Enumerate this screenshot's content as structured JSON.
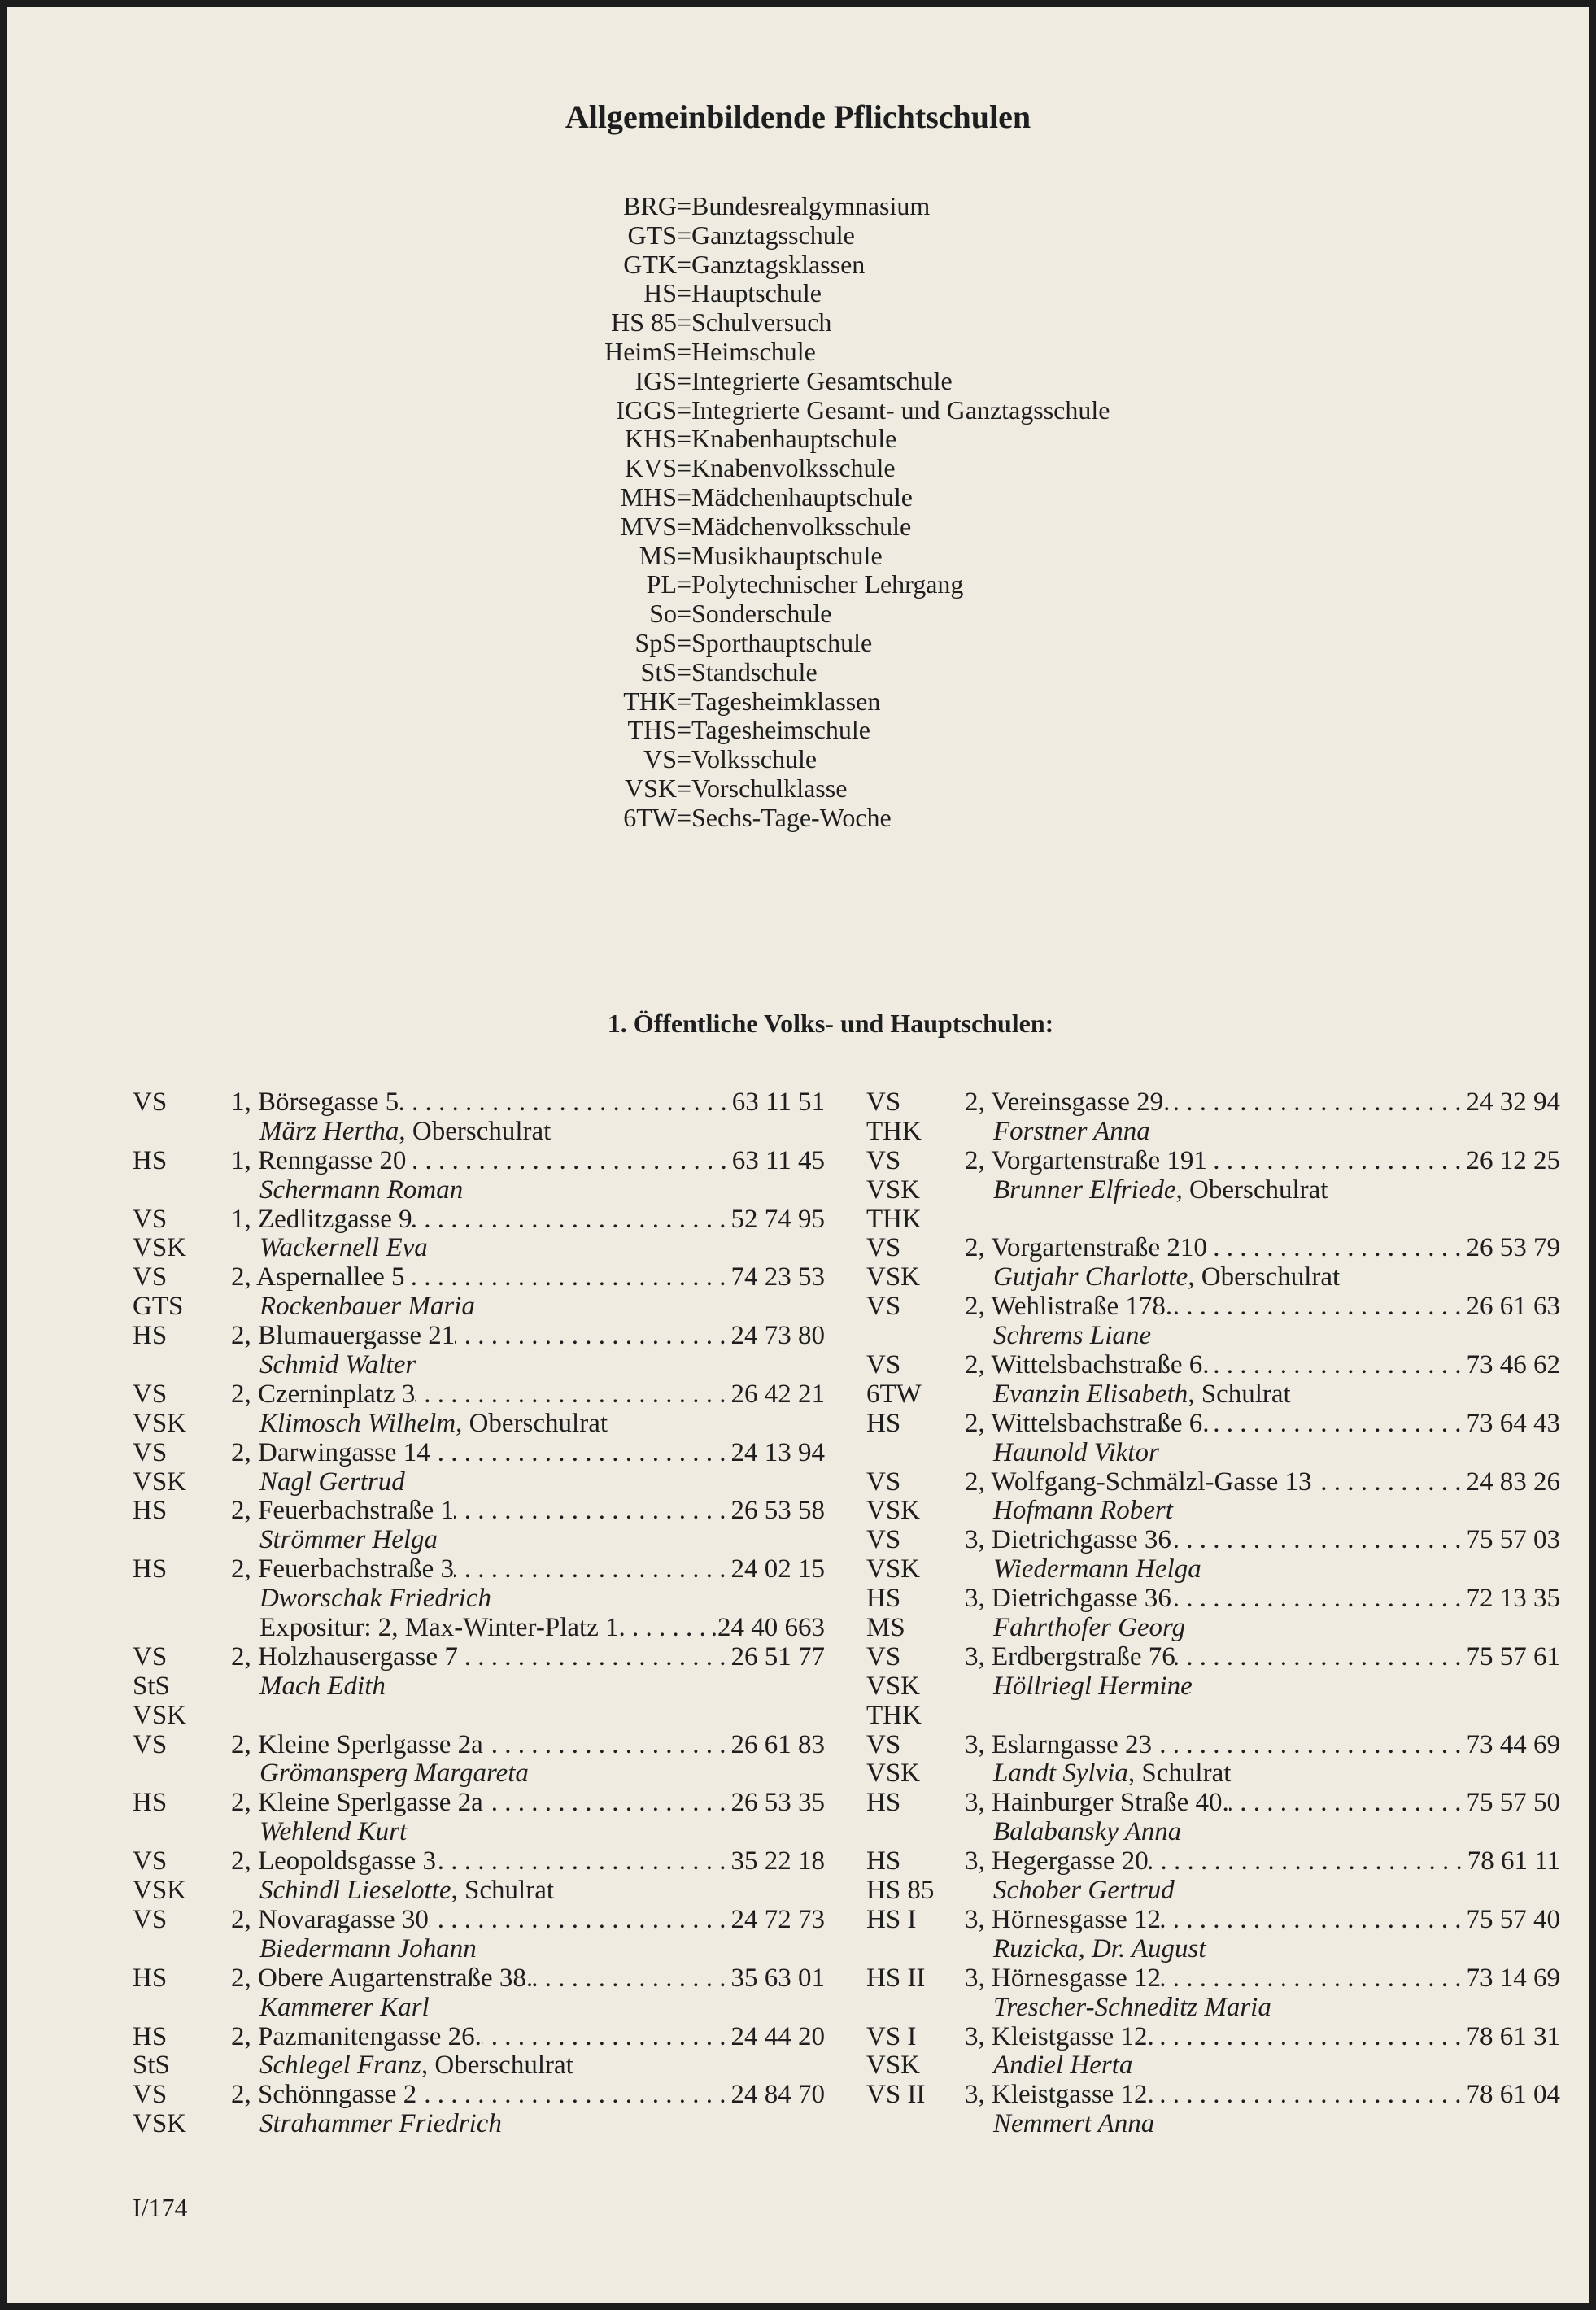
{
  "title": "Allgemeinbildende Pflichtschulen",
  "abbreviations": [
    {
      "code": "BRG",
      "text": "Bundesrealgymnasium"
    },
    {
      "code": "GTS",
      "text": "Ganztagsschule"
    },
    {
      "code": "GTK",
      "text": "Ganztagsklassen"
    },
    {
      "code": "HS",
      "text": "Hauptschule"
    },
    {
      "code": "HS 85",
      "text": "Schulversuch"
    },
    {
      "code": "HeimS",
      "text": "Heimschule"
    },
    {
      "code": "IGS",
      "text": "Integrierte Gesamtschule"
    },
    {
      "code": "IGGS",
      "text": "Integrierte Gesamt- und Ganztagsschule"
    },
    {
      "code": "KHS",
      "text": "Knabenhauptschule"
    },
    {
      "code": "KVS",
      "text": "Knabenvolksschule"
    },
    {
      "code": "MHS",
      "text": "Mädchenhauptschule"
    },
    {
      "code": "MVS",
      "text": "Mädchenvolksschule"
    },
    {
      "code": "MS",
      "text": "Musikhauptschule"
    },
    {
      "code": "PL",
      "text": "Polytechnischer Lehrgang"
    },
    {
      "code": "So",
      "text": "Sonderschule"
    },
    {
      "code": "SpS",
      "text": "Sporthauptschule"
    },
    {
      "code": "StS",
      "text": "Standschule"
    },
    {
      "code": "THK",
      "text": "Tagesheimklassen"
    },
    {
      "code": "THS",
      "text": "Tagesheimschule"
    },
    {
      "code": "VS",
      "text": "Volksschule"
    },
    {
      "code": "VSK",
      "text": "Vorschulklasse"
    },
    {
      "code": "6TW",
      "text": "Sechs-Tage-Woche"
    }
  ],
  "abbr_separator": "=",
  "section_heading": "1. Öffentliche Volks- und Hauptschulen:",
  "columns": {
    "left": [
      {
        "code": "VS",
        "addr": "1, Börsegasse 5",
        "phone": "63 11 51"
      },
      {
        "code": "",
        "name": "März Hertha",
        "title": ", Oberschulrat"
      },
      {
        "code": "HS",
        "addr": "1, Renngasse 20",
        "phone": "63 11 45"
      },
      {
        "code": "",
        "name": "Schermann Roman"
      },
      {
        "code": "VS",
        "addr": "1, Zedlitzgasse 9",
        "phone": "52 74 95"
      },
      {
        "code": "VSK",
        "name": "Wackernell Eva"
      },
      {
        "code": "VS",
        "addr": "2, Aspernallee 5",
        "phone": "74 23 53"
      },
      {
        "code": "GTS",
        "name": "Rockenbauer Maria"
      },
      {
        "code": "HS",
        "addr": "2, Blumauergasse 21",
        "phone": "24 73 80"
      },
      {
        "code": "",
        "name": "Schmid Walter"
      },
      {
        "code": "VS",
        "addr": "2, Czerninplatz 3",
        "phone": "26 42 21"
      },
      {
        "code": "VSK",
        "name": "Klimosch Wilhelm",
        "title": ", Oberschulrat"
      },
      {
        "code": "VS",
        "addr": "2, Darwingasse 14",
        "phone": "24 13 94"
      },
      {
        "code": "VSK",
        "name": "Nagl Gertrud"
      },
      {
        "code": "HS",
        "addr": "2, Feuerbachstraße 1",
        "phone": "26 53 58"
      },
      {
        "code": "",
        "name": "Strömmer Helga"
      },
      {
        "code": "HS",
        "addr": "2, Feuerbachstraße 3",
        "phone": "24 02 15"
      },
      {
        "code": "",
        "name": "Dworschak Friedrich"
      },
      {
        "code": "",
        "expo": "Expositur: 2, Max-Winter-Platz 1",
        "phone": ".24 40 663"
      },
      {
        "code": "VS",
        "addr": "2, Holzhausergasse 7",
        "phone": "26 51 77"
      },
      {
        "code": "StS",
        "name": "Mach Edith"
      },
      {
        "code": "VSK"
      },
      {
        "code": "VS",
        "addr": "2, Kleine Sperlgasse 2a",
        "phone": "26 61 83"
      },
      {
        "code": "",
        "name": "Grömansperg Margareta"
      },
      {
        "code": "HS",
        "addr": "2, Kleine Sperlgasse 2a",
        "phone": "26 53 35"
      },
      {
        "code": "",
        "name": "Wehlend Kurt"
      },
      {
        "code": "VS",
        "addr": "2, Leopoldsgasse 3",
        "phone": "35 22 18"
      },
      {
        "code": "VSK",
        "name": "Schindl Lieselotte",
        "title": ", Schulrat"
      },
      {
        "code": "VS",
        "addr": "2, Novaragasse 30",
        "phone": "24 72 73"
      },
      {
        "code": "",
        "name": "Biedermann Johann"
      },
      {
        "code": "HS",
        "addr": "2, Obere Augartenstraße 38.",
        "phone": "35 63 01"
      },
      {
        "code": "",
        "name": "Kammerer Karl"
      },
      {
        "code": "HS",
        "addr": "2, Pazmanitengasse 26.",
        "phone": "24 44 20"
      },
      {
        "code": "StS",
        "name": "Schlegel Franz",
        "title": ", Oberschulrat"
      },
      {
        "code": "VS",
        "addr": "2, Schönngasse 2",
        "phone": "24 84 70"
      },
      {
        "code": "VSK",
        "name": "Strahammer Friedrich"
      }
    ],
    "right": [
      {
        "code": "VS",
        "addr": "2, Vereinsgasse 29.",
        "phone": "24 32 94"
      },
      {
        "code": "THK",
        "name": "Forstner Anna"
      },
      {
        "code": "VS",
        "addr": "2, Vorgartenstraße 191",
        "phone": "26 12 25"
      },
      {
        "code": "VSK",
        "name": "Brunner Elfriede",
        "title": ", Oberschulrat"
      },
      {
        "code": "THK"
      },
      {
        "code": "VS",
        "addr": "2, Vorgartenstraße 210",
        "phone": "26 53 79"
      },
      {
        "code": "VSK",
        "name": "Gutjahr Charlotte",
        "title": ", Oberschulrat"
      },
      {
        "code": "VS",
        "addr": "2, Wehlistraße 178.",
        "phone": "26 61 63"
      },
      {
        "code": "",
        "name": "Schrems Liane"
      },
      {
        "code": "VS",
        "addr": "2, Wittelsbachstraße 6.",
        "phone": "73 46 62"
      },
      {
        "code": "6TW",
        "name": "Evanzin Elisabeth",
        "title": ", Schulrat"
      },
      {
        "code": "HS",
        "addr": "2, Wittelsbachstraße 6.",
        "phone": "73 64 43"
      },
      {
        "code": "",
        "name": "Haunold Viktor"
      },
      {
        "code": "VS",
        "addr": "2, Wolfgang-Schmälzl-Gasse 13",
        "phone": "24 83 26"
      },
      {
        "code": "VSK",
        "name": "Hofmann Robert"
      },
      {
        "code": "VS",
        "addr": "3, Dietrichgasse 36",
        "phone": "75 57 03"
      },
      {
        "code": "VSK",
        "name": "Wiedermann Helga"
      },
      {
        "code": "HS",
        "addr": "3, Dietrichgasse 36",
        "phone": "72 13 35"
      },
      {
        "code": "MS",
        "name": "Fahrthofer Georg"
      },
      {
        "code": "VS",
        "addr": "3, Erdbergstraße 76",
        "phone": "75 57 61"
      },
      {
        "code": "VSK",
        "name": "Höllriegl Hermine"
      },
      {
        "code": "THK"
      },
      {
        "code": "VS",
        "addr": "3, Eslarngasse 23",
        "phone": "73 44 69"
      },
      {
        "code": "VSK",
        "name": "Landt Sylvia",
        "title": ", Schulrat"
      },
      {
        "code": "HS",
        "addr": "3, Hainburger Straße 40.",
        "phone": "75 57 50"
      },
      {
        "code": "",
        "name": "Balabansky Anna"
      },
      {
        "code": "HS",
        "addr": "3, Hegergasse 20",
        "phone": "78 61 11"
      },
      {
        "code": "HS 85",
        "name": "Schober Gertrud"
      },
      {
        "code": "HS I",
        "addr": "3, Hörnesgasse 12",
        "phone": "75 57 40"
      },
      {
        "code": "",
        "name": "Ruzicka, Dr. August"
      },
      {
        "code": "HS II",
        "addr": "3, Hörnesgasse 12",
        "phone": "73 14 69"
      },
      {
        "code": "",
        "name": "Trescher-Schneditz Maria"
      },
      {
        "code": "VS I",
        "addr": "3, Kleistgasse 12.",
        "phone": "78 61 31"
      },
      {
        "code": "VSK",
        "name": "Andiel Herta"
      },
      {
        "code": "VS II",
        "addr": "3, Kleistgasse 12.",
        "phone": "78 61 04"
      },
      {
        "code": "",
        "name": "Nemmert Anna"
      }
    ]
  },
  "page_number": "I/174"
}
